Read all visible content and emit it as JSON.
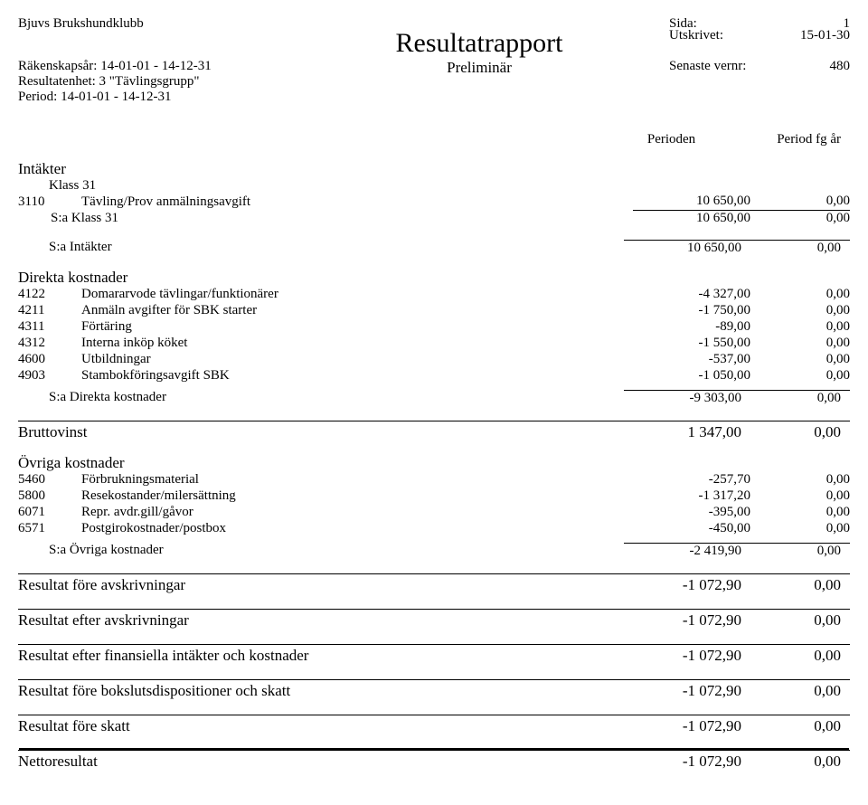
{
  "header": {
    "org": "Bjuvs Brukshundklubb",
    "title": "Resultatrapport",
    "subtitle": "Preliminär",
    "fiscal_label": "Räkenskapsår: 14-01-01 - 14-12-31",
    "unit_label": "Resultatenhet: 3 \"Tävlingsgrupp\"",
    "period_label": "Period: 14-01-01 - 14-12-31",
    "right": {
      "sida_label": "Sida:",
      "sida_value": "1",
      "utskrivet_label": "Utskrivet:",
      "utskrivet_value": "15-01-30",
      "vernr_label": "Senaste vernr:",
      "vernr_value": "480"
    }
  },
  "period_headers": {
    "col1": "Perioden",
    "col2": "Period fg år"
  },
  "intakter": {
    "title": "Intäkter",
    "klass_label": "Klass 31",
    "rows": [
      {
        "code": "3110",
        "label": "Tävling/Prov anmälningsavgift",
        "a1": "10 650,00",
        "a2": "0,00"
      }
    ],
    "klass_sum": {
      "label": "S:a Klass 31",
      "a1": "10 650,00",
      "a2": "0,00"
    },
    "total": {
      "label": "S:a Intäkter",
      "a1": "10 650,00",
      "a2": "0,00"
    }
  },
  "direkta": {
    "title": "Direkta kostnader",
    "rows": [
      {
        "code": "4122",
        "label": "Domararvode tävlingar/funktionärer",
        "a1": "-4 327,00",
        "a2": "0,00"
      },
      {
        "code": "4211",
        "label": "Anmäln avgifter för SBK starter",
        "a1": "-1 750,00",
        "a2": "0,00"
      },
      {
        "code": "4311",
        "label": "Förtäring",
        "a1": "-89,00",
        "a2": "0,00"
      },
      {
        "code": "4312",
        "label": "Interna inköp köket",
        "a1": "-1 550,00",
        "a2": "0,00"
      },
      {
        "code": "4600",
        "label": "Utbildningar",
        "a1": "-537,00",
        "a2": "0,00"
      },
      {
        "code": "4903",
        "label": "Stambokföringsavgift SBK",
        "a1": "-1 050,00",
        "a2": "0,00"
      }
    ],
    "total": {
      "label": "S:a Direkta kostnader",
      "a1": "-9 303,00",
      "a2": "0,00"
    }
  },
  "bruttovinst": {
    "label": "Bruttovinst",
    "a1": "1 347,00",
    "a2": "0,00"
  },
  "ovriga": {
    "title": "Övriga kostnader",
    "rows": [
      {
        "code": "5460",
        "label": "Förbrukningsmaterial",
        "a1": "-257,70",
        "a2": "0,00"
      },
      {
        "code": "5800",
        "label": "Resekostander/milersättning",
        "a1": "-1 317,20",
        "a2": "0,00"
      },
      {
        "code": "6071",
        "label": "Repr. avdr.gill/gåvor",
        "a1": "-395,00",
        "a2": "0,00"
      },
      {
        "code": "6571",
        "label": "Postgirokostnader/postbox",
        "a1": "-450,00",
        "a2": "0,00"
      }
    ],
    "total": {
      "label": "S:a Övriga kostnader",
      "a1": "-2 419,90",
      "a2": "0,00"
    }
  },
  "results": [
    {
      "label": "Resultat före avskrivningar",
      "a1": "-1 072,90",
      "a2": "0,00"
    },
    {
      "label": "Resultat efter avskrivningar",
      "a1": "-1 072,90",
      "a2": "0,00"
    },
    {
      "label": "Resultat efter finansiella intäkter och kostnader",
      "a1": "-1 072,90",
      "a2": "0,00"
    },
    {
      "label": "Resultat före bokslutsdispositioner och skatt",
      "a1": "-1 072,90",
      "a2": "0,00"
    },
    {
      "label": "Resultat före skatt",
      "a1": "-1 072,90",
      "a2": "0,00"
    },
    {
      "label": "Nettoresultat",
      "a1": "-1 072,90",
      "a2": "0,00"
    }
  ]
}
